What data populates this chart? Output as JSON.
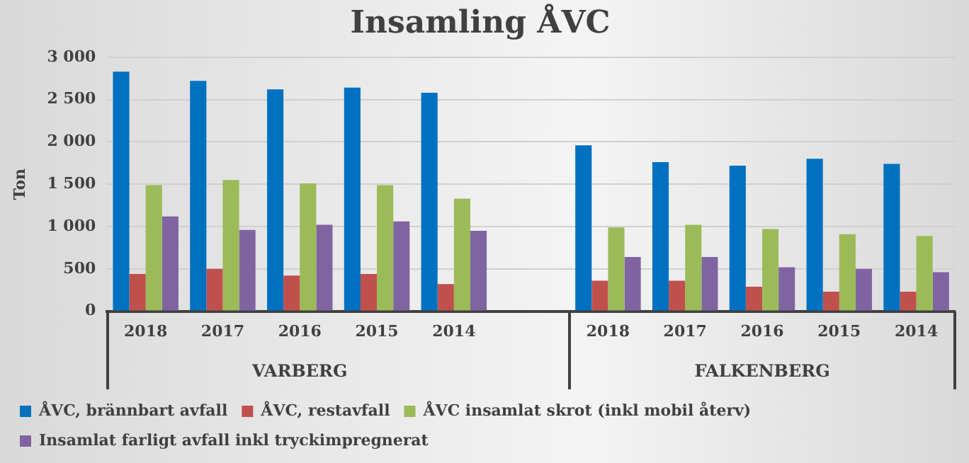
{
  "chart_data": {
    "type": "bar",
    "title": "Insamling ÅVC",
    "ylabel": "Ton",
    "categories": [
      "2018",
      "2017",
      "2016",
      "2015",
      "2014",
      null,
      "2018",
      "2017",
      "2016",
      "2015",
      "2014"
    ],
    "series": [
      {
        "name": "ÅVC, brännbart avfall",
        "color": "#0070c0",
        "values": [
          2830,
          2720,
          2620,
          2640,
          2580,
          null,
          1960,
          1760,
          1720,
          1800,
          1740
        ]
      },
      {
        "name": "ÅVC, restavfall",
        "color": "#c0504d",
        "values": [
          440,
          500,
          420,
          440,
          320,
          null,
          360,
          360,
          290,
          230,
          230
        ]
      },
      {
        "name": "ÅVC insamlat skrot (inkl mobil återv)",
        "color": "#9bbb59",
        "values": [
          1490,
          1550,
          1510,
          1490,
          1330,
          null,
          990,
          1020,
          970,
          910,
          890
        ]
      },
      {
        "name": "Insamlat farligt avfall inkl tryckimpregnerat",
        "color": "#8064a2",
        "values": [
          1120,
          960,
          1020,
          1060,
          950,
          null,
          640,
          640,
          520,
          500,
          460
        ]
      }
    ],
    "ylim": [
      0,
      3000
    ],
    "yticks": [
      0,
      500,
      {
        "value": 1000,
        "label": "1 000"
      },
      {
        "value": 1500,
        "label": "1 500"
      },
      {
        "value": 2000,
        "label": "2 000"
      },
      {
        "value": 2500,
        "label": "2 500"
      },
      {
        "value": 3000,
        "label": "3 000"
      }
    ],
    "grid": "y",
    "legend": "bottom",
    "annotations": [
      "VARBERG",
      "FALKENBERG"
    ]
  }
}
